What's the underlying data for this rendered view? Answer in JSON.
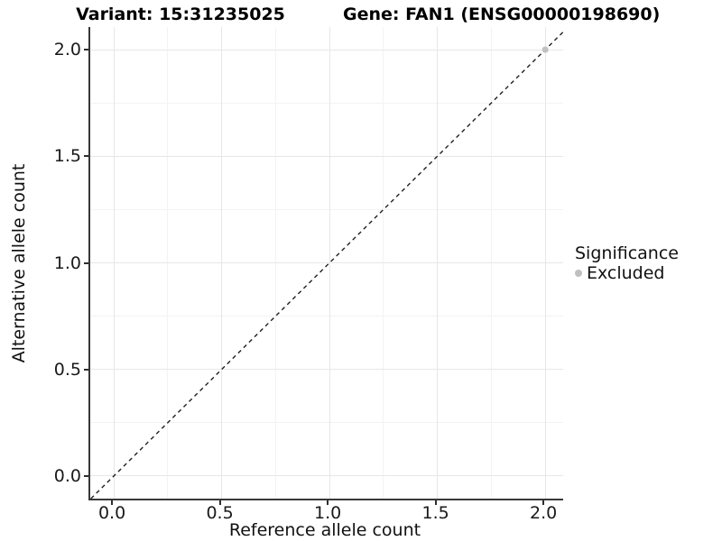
{
  "chart_data": {
    "type": "scatter",
    "title_left": "Variant: 15:31235025",
    "title_right": "Gene: FAN1 (ENSG00000198690)",
    "xlabel": "Reference allele count",
    "ylabel": "Alternative allele count",
    "xlim": [
      -0.109,
      2.083
    ],
    "ylim": [
      -0.106,
      2.106
    ],
    "x_ticks": [
      {
        "value": 0.0,
        "label": "0.0"
      },
      {
        "value": 0.5,
        "label": "0.5"
      },
      {
        "value": 1.0,
        "label": "1.0"
      },
      {
        "value": 1.5,
        "label": "1.5"
      },
      {
        "value": 2.0,
        "label": "2.0"
      }
    ],
    "y_ticks": [
      {
        "value": 0.0,
        "label": "0.0"
      },
      {
        "value": 0.5,
        "label": "0.5"
      },
      {
        "value": 1.0,
        "label": "1.0"
      },
      {
        "value": 1.5,
        "label": "1.5"
      },
      {
        "value": 2.0,
        "label": "2.0"
      }
    ],
    "grid": "major+minor",
    "reference_line": {
      "style": "dashed",
      "slope": 1,
      "intercept": 0,
      "color": "#1f1f1f"
    },
    "points": [
      {
        "x": 2,
        "y": 2,
        "significance": "Excluded",
        "color": "#c2c2c2"
      }
    ],
    "legend": {
      "position": "right",
      "title": "Significance",
      "items": [
        {
          "label": "Excluded",
          "color": "#bfbfbf"
        }
      ]
    },
    "colors": {
      "grid_major": "#e7e7e7",
      "grid_minor": "#f3f3f3",
      "axis_line": "#383838",
      "excluded_point": "#c2c2c2"
    }
  }
}
